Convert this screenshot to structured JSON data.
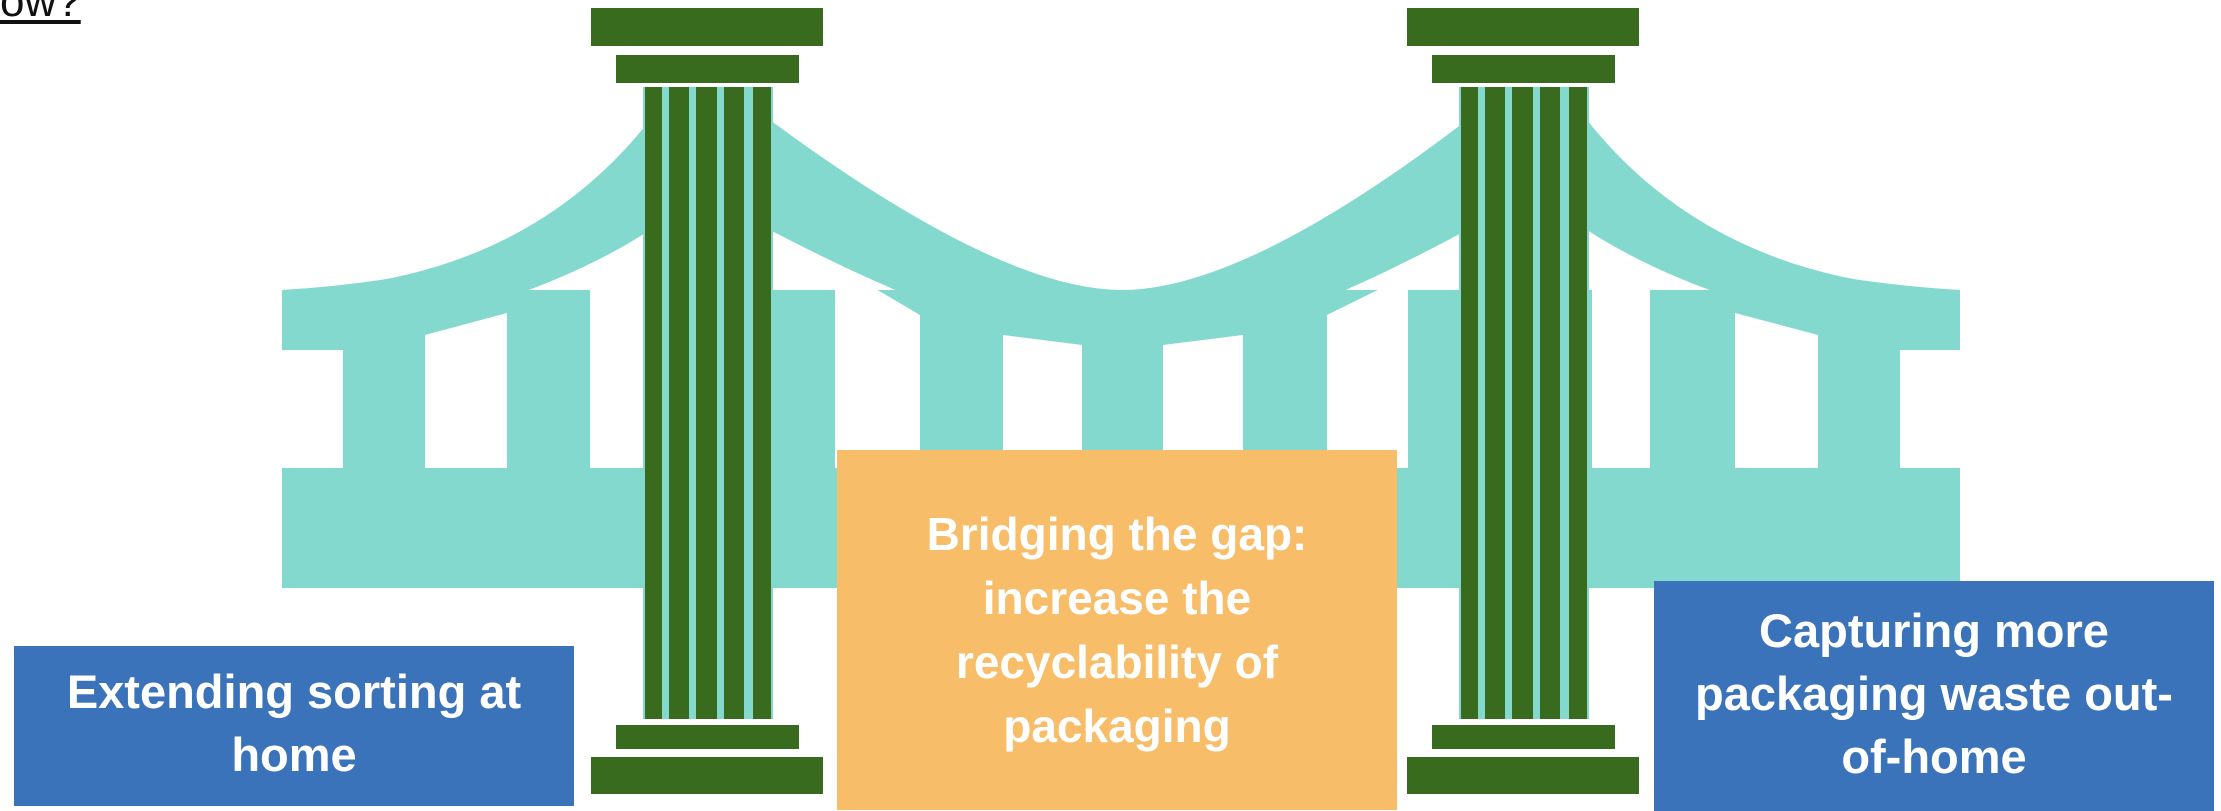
{
  "heading_fragment": "ow?",
  "colors": {
    "bridge": "#84d9cf",
    "column": "#386b1e",
    "box_blue": "#3b73ba",
    "box_orange": "#f8bd68",
    "text": "#ffffff"
  },
  "boxes": {
    "left": {
      "text": "Extending sorting at home"
    },
    "center": {
      "text": "Bridging the gap: increase the recyclability of packaging"
    },
    "right": {
      "text": "Capturing more packaging waste out-of-home"
    }
  }
}
